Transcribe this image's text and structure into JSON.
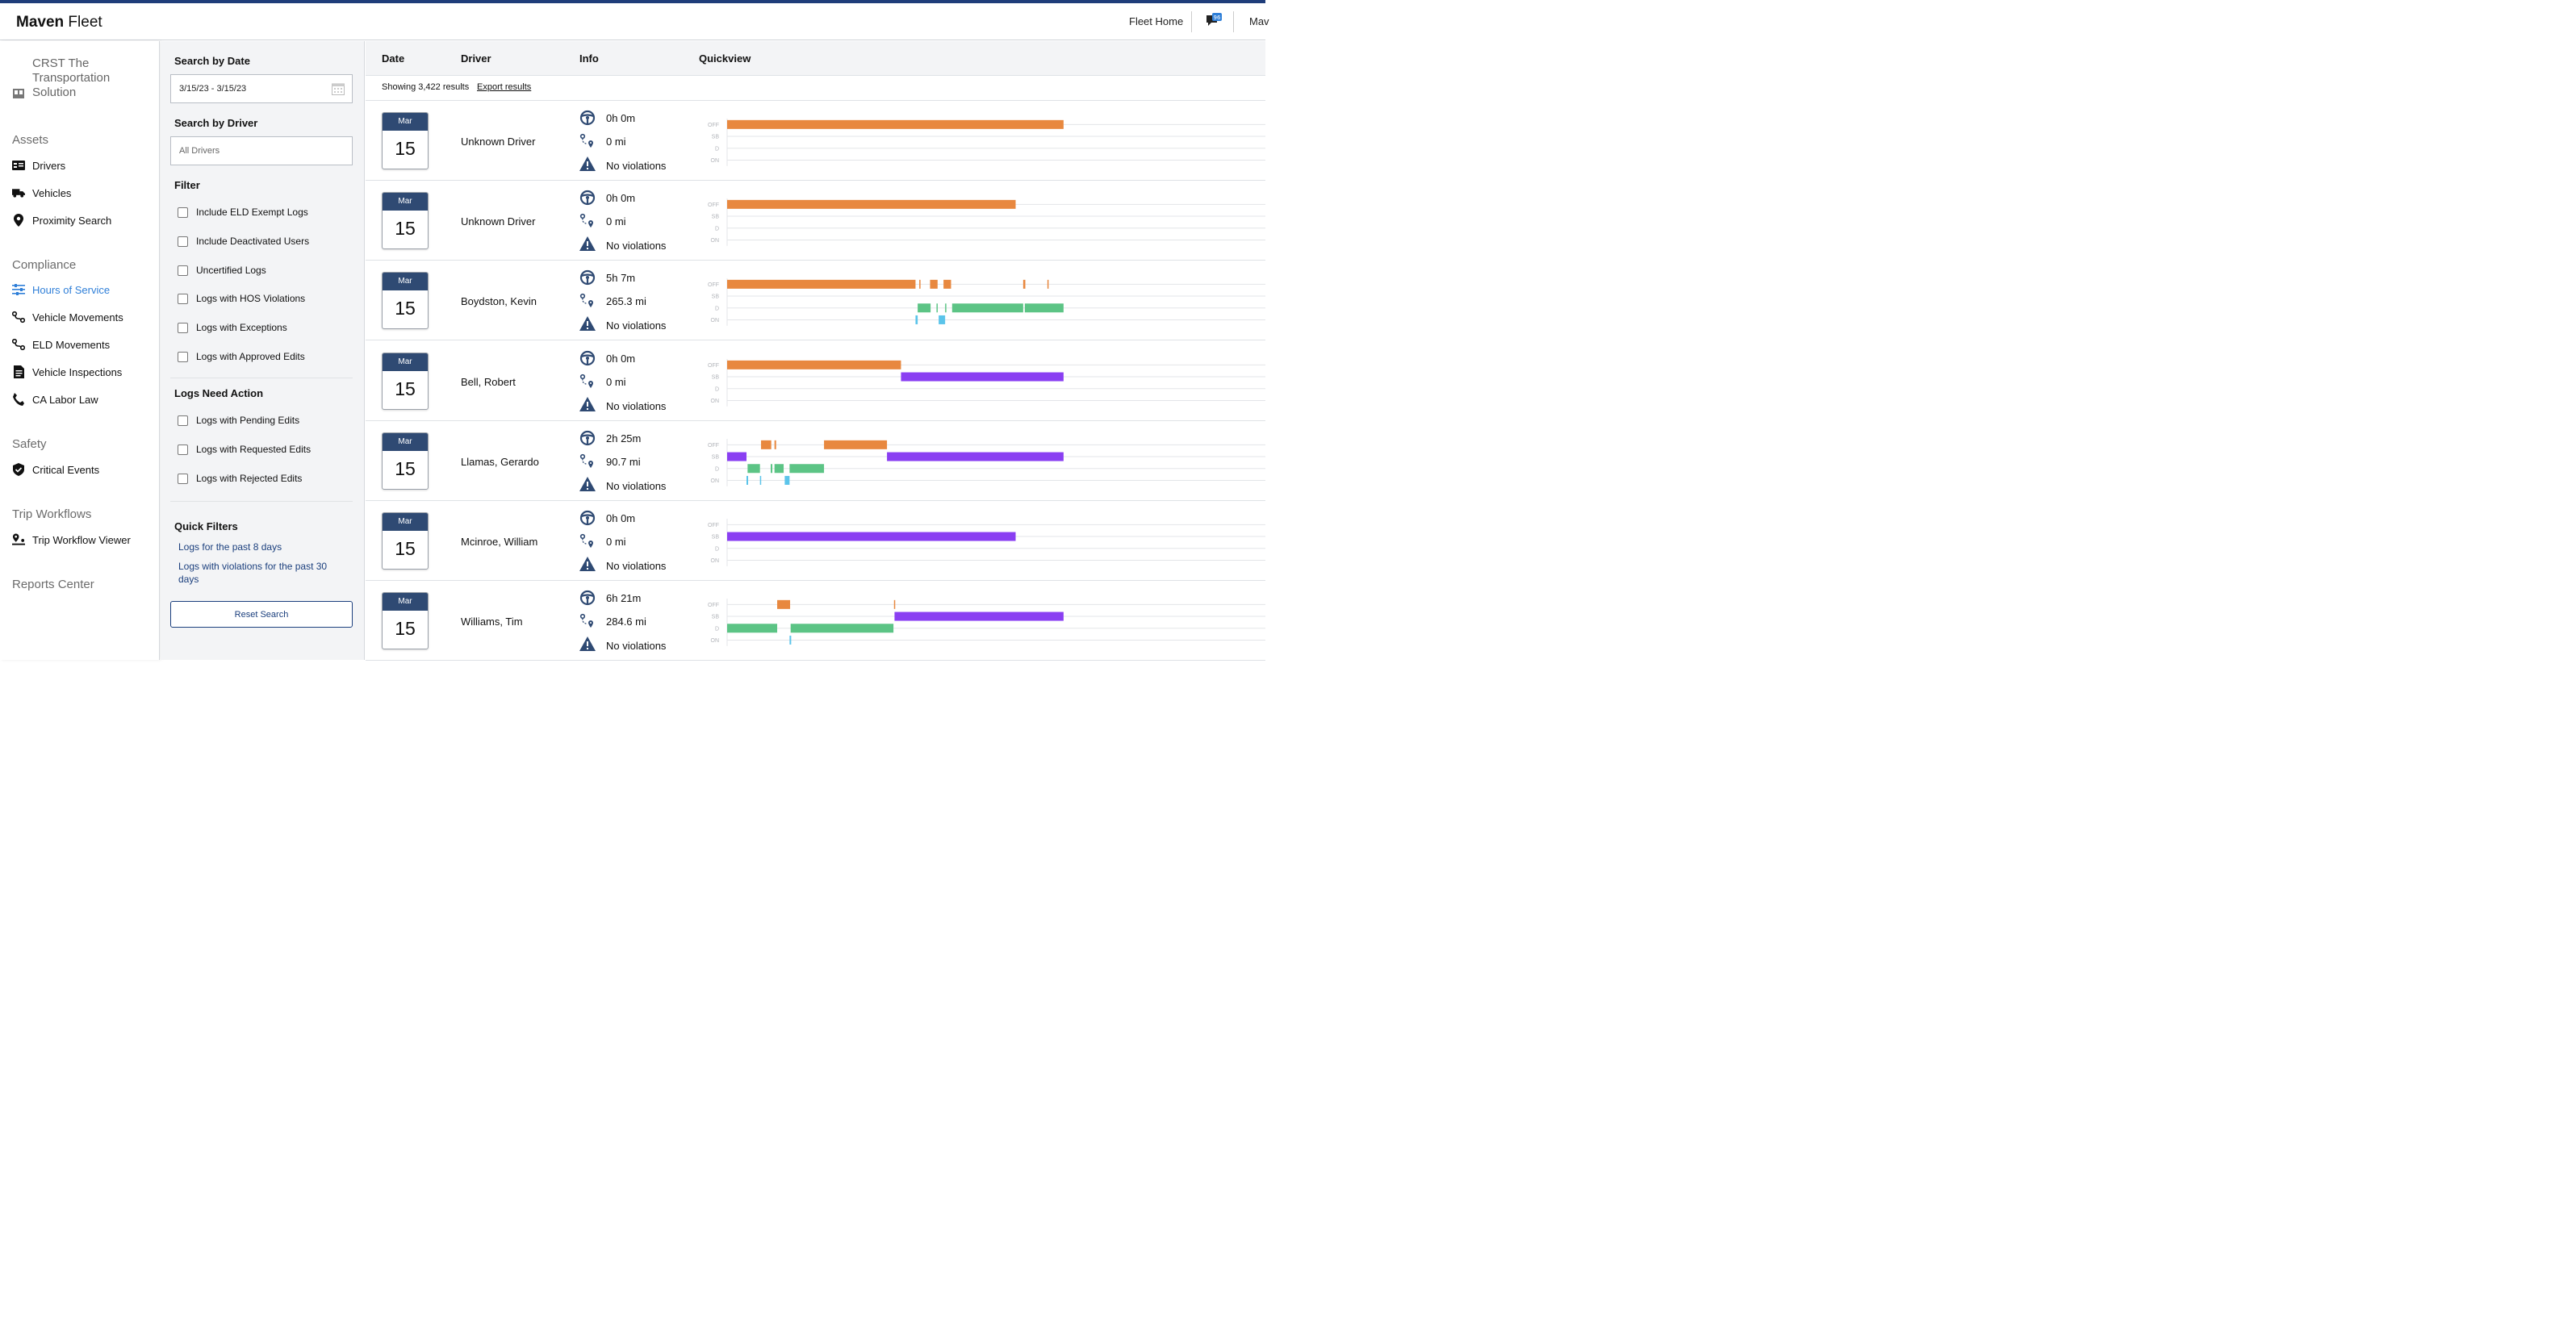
{
  "topbar": {
    "brand_bold": "Maven",
    "brand_light": " Fleet",
    "fleet_home": "Fleet Home",
    "message_count": "96",
    "user_cut": "Mav"
  },
  "nav": {
    "org": "CRST The Transportation Solution",
    "sections": {
      "assets": "Assets",
      "compliance": "Compliance",
      "safety": "Safety",
      "trip": "Trip Workflows",
      "reports": "Reports Center"
    },
    "items": {
      "drivers": "Drivers",
      "vehicles": "Vehicles",
      "proximity": "Proximity Search",
      "hos": "Hours of Service",
      "vehicle_movements": "Vehicle Movements",
      "eld_movements": "ELD Movements",
      "vehicle_inspections": "Vehicle Inspections",
      "ca_labor": "CA Labor Law",
      "critical_events": "Critical Events",
      "trip_viewer": "Trip Workflow Viewer"
    },
    "active_color": "#2f7fd8"
  },
  "filters": {
    "date_label": "Search by Date",
    "date_value": "3/15/23 - 3/15/23",
    "driver_label": "Search by Driver",
    "driver_placeholder": "All Drivers",
    "filter_label": "Filter",
    "checkboxes": [
      "Include ELD Exempt Logs",
      "Include Deactivated Users",
      "Uncertified Logs",
      "Logs with HOS Violations",
      "Logs with Exceptions",
      "Logs with Approved Edits"
    ],
    "need_action_label": "Logs Need Action",
    "need_action": [
      "Logs with Pending Edits",
      "Logs with Requested Edits",
      "Logs with Rejected Edits"
    ],
    "quick_label": "Quick Filters",
    "quick_links": [
      "Logs for the past 8 days",
      "Logs with violations for the past 30 days"
    ],
    "reset": "Reset Search"
  },
  "table": {
    "headers": {
      "date": "Date",
      "driver": "Driver",
      "info": "Info",
      "quickview": "Quickview"
    },
    "results": "Showing 3,422 results",
    "export": "Export results",
    "lane_labels": [
      "OFF",
      "SB",
      "D",
      "ON"
    ],
    "status_colors": {
      "OFF": "#e8883f",
      "SB": "#8a3ff2",
      "D": "#5cc485",
      "ON": "#5bc4ea"
    },
    "rows": [
      {
        "month": "Mar",
        "day": "15",
        "driver": "Unknown Driver",
        "drive_time": "0h 0m",
        "distance": "0 mi",
        "violations": "No violations",
        "segments": [
          {
            "status": "OFF",
            "start": 0.0,
            "end": 0.625
          }
        ]
      },
      {
        "month": "Mar",
        "day": "15",
        "driver": "Unknown Driver",
        "drive_time": "0h 0m",
        "distance": "0 mi",
        "violations": "No violations",
        "segments": [
          {
            "status": "OFF",
            "start": 0.0,
            "end": 0.536
          }
        ]
      },
      {
        "month": "Mar",
        "day": "15",
        "driver": "Boydston, Kevin",
        "drive_time": "5h 7m",
        "distance": "265.3 mi",
        "violations": "No violations",
        "segments": [
          {
            "status": "OFF",
            "start": 0.0,
            "end": 0.35
          },
          {
            "status": "OFF",
            "start": 0.357,
            "end": 0.359
          },
          {
            "status": "OFF",
            "start": 0.377,
            "end": 0.391
          },
          {
            "status": "OFF",
            "start": 0.402,
            "end": 0.416
          },
          {
            "status": "OFF",
            "start": 0.55,
            "end": 0.554
          },
          {
            "status": "OFF",
            "start": 0.595,
            "end": 0.597
          },
          {
            "status": "D",
            "start": 0.354,
            "end": 0.378
          },
          {
            "status": "D",
            "start": 0.389,
            "end": 0.391
          },
          {
            "status": "D",
            "start": 0.405,
            "end": 0.407
          },
          {
            "status": "D",
            "start": 0.418,
            "end": 0.55
          },
          {
            "status": "D",
            "start": 0.553,
            "end": 0.625
          },
          {
            "status": "ON",
            "start": 0.35,
            "end": 0.354
          },
          {
            "status": "ON",
            "start": 0.393,
            "end": 0.405
          }
        ]
      },
      {
        "month": "Mar",
        "day": "15",
        "driver": "Bell, Robert",
        "drive_time": "0h 0m",
        "distance": "0 mi",
        "violations": "No violations",
        "segments": [
          {
            "status": "OFF",
            "start": 0.0,
            "end": 0.323
          },
          {
            "status": "SB",
            "start": 0.323,
            "end": 0.625
          }
        ]
      },
      {
        "month": "Mar",
        "day": "15",
        "driver": "Llamas, Gerardo",
        "drive_time": "2h 25m",
        "distance": "90.7 mi",
        "violations": "No violations",
        "segments": [
          {
            "status": "OFF",
            "start": 0.063,
            "end": 0.082
          },
          {
            "status": "OFF",
            "start": 0.088,
            "end": 0.091
          },
          {
            "status": "OFF",
            "start": 0.18,
            "end": 0.297
          },
          {
            "status": "SB",
            "start": 0.0,
            "end": 0.036
          },
          {
            "status": "SB",
            "start": 0.297,
            "end": 0.625
          },
          {
            "status": "D",
            "start": 0.038,
            "end": 0.061
          },
          {
            "status": "D",
            "start": 0.081,
            "end": 0.084
          },
          {
            "status": "D",
            "start": 0.088,
            "end": 0.105
          },
          {
            "status": "D",
            "start": 0.116,
            "end": 0.18
          },
          {
            "status": "ON",
            "start": 0.036,
            "end": 0.039
          },
          {
            "status": "ON",
            "start": 0.061,
            "end": 0.063
          },
          {
            "status": "ON",
            "start": 0.107,
            "end": 0.116
          }
        ]
      },
      {
        "month": "Mar",
        "day": "15",
        "driver": "Mcinroe, William",
        "drive_time": "0h 0m",
        "distance": "0 mi",
        "violations": "No violations",
        "segments": [
          {
            "status": "SB",
            "start": 0.0,
            "end": 0.536
          }
        ]
      },
      {
        "month": "Mar",
        "day": "15",
        "driver": "Williams, Tim",
        "drive_time": "6h 21m",
        "distance": "284.6 mi",
        "violations": "No violations",
        "segments": [
          {
            "status": "OFF",
            "start": 0.093,
            "end": 0.117
          },
          {
            "status": "OFF",
            "start": 0.31,
            "end": 0.312
          },
          {
            "status": "SB",
            "start": 0.311,
            "end": 0.625
          },
          {
            "status": "D",
            "start": 0.0,
            "end": 0.093
          },
          {
            "status": "D",
            "start": 0.118,
            "end": 0.309
          },
          {
            "status": "ON",
            "start": 0.116,
            "end": 0.119
          }
        ]
      }
    ]
  }
}
